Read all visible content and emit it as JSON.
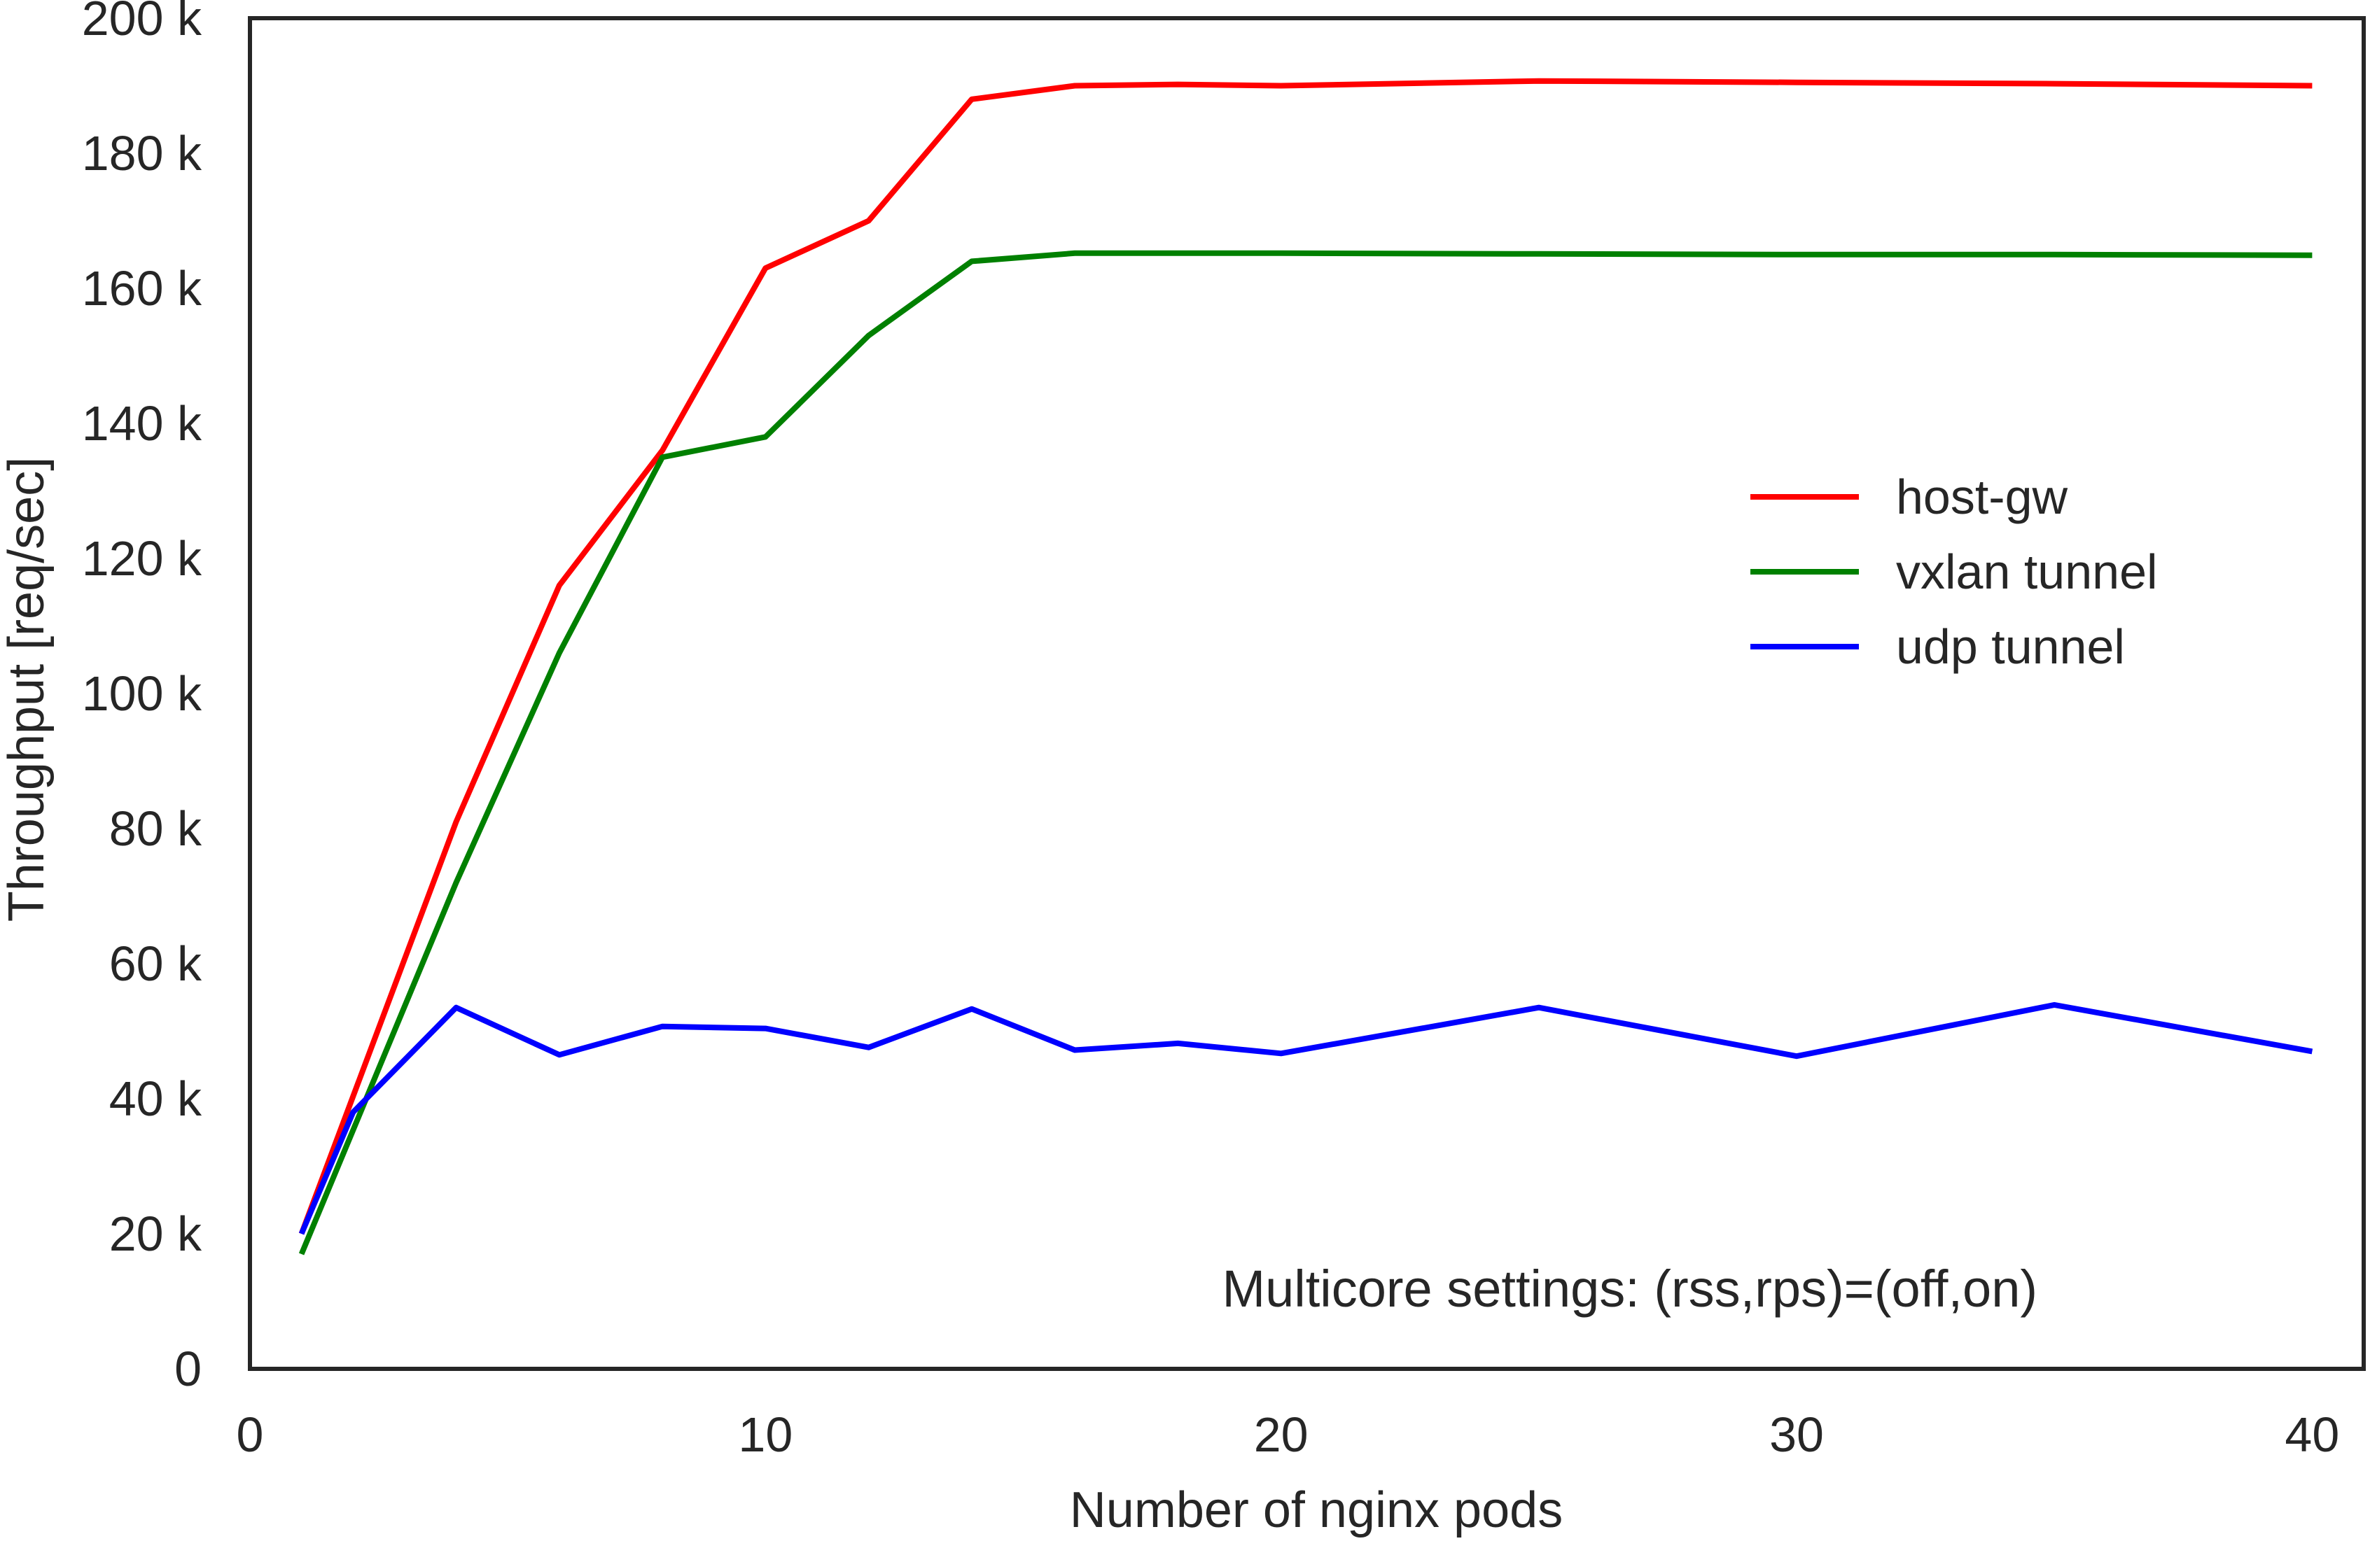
{
  "chart_data": {
    "type": "line",
    "title": "",
    "xlabel": "Number of nginx pods",
    "ylabel": "Throughput [req/sec]",
    "xlim": [
      0,
      41
    ],
    "ylim": [
      0,
      200000
    ],
    "xticks": [
      0,
      10,
      20,
      30,
      40
    ],
    "xtick_labels": [
      "0",
      "10",
      "20",
      "30",
      "40"
    ],
    "yticks": [
      0,
      20000,
      40000,
      60000,
      80000,
      100000,
      120000,
      140000,
      160000,
      180000,
      200000
    ],
    "ytick_labels": [
      "0",
      "20 k",
      "40 k",
      "60 k",
      "80 k",
      "100 k",
      "120 k",
      "140 k",
      "160 k",
      "180 k",
      "200 k"
    ],
    "grid": false,
    "legend_position": "center-right",
    "annotation": "Multicore settings: (rss,rps)=(off,on)",
    "series": [
      {
        "name": "host-gw",
        "color": "#ff0000",
        "x": [
          1,
          4,
          6,
          8,
          10,
          12,
          14,
          16,
          18,
          20,
          25,
          30,
          35,
          40
        ],
        "y": [
          20000,
          81000,
          116000,
          136000,
          163000,
          170000,
          188000,
          190000,
          190200,
          190000,
          190700,
          190500,
          190300,
          190000
        ]
      },
      {
        "name": "vxlan tunnel",
        "color": "#008000",
        "x": [
          1,
          4,
          6,
          8,
          10,
          12,
          14,
          16,
          18,
          20,
          25,
          30,
          35,
          40
        ],
        "y": [
          17000,
          72000,
          106000,
          135000,
          138000,
          153000,
          164000,
          165200,
          165200,
          165200,
          165100,
          165000,
          165000,
          164900
        ]
      },
      {
        "name": "udp tunnel",
        "color": "#0000ff",
        "x": [
          1,
          2,
          4,
          6,
          8,
          10,
          12,
          14,
          16,
          18,
          20,
          25,
          30,
          35,
          40
        ],
        "y": [
          20000,
          38000,
          53500,
          46500,
          50700,
          50400,
          47600,
          53300,
          47200,
          48200,
          46700,
          53500,
          46300,
          53900,
          47000
        ]
      }
    ]
  }
}
